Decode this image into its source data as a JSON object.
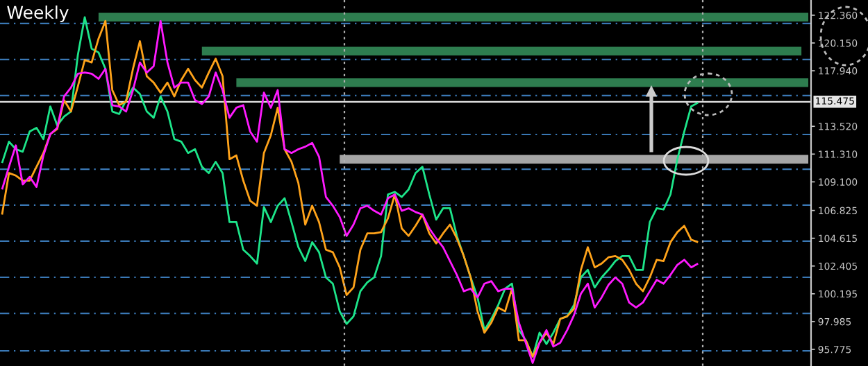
{
  "chart_data": {
    "type": "line",
    "title": "Weekly",
    "categories": [
      null,
      null,
      null,
      null,
      null,
      null,
      null,
      null,
      null,
      null,
      null,
      null,
      null,
      null,
      null,
      null,
      null,
      null,
      null,
      null,
      null,
      null,
      null,
      null,
      null,
      null,
      null,
      null,
      null,
      null,
      null,
      null,
      null,
      null,
      null,
      null,
      null,
      null,
      null,
      null,
      null,
      null,
      null,
      null,
      null,
      null,
      null,
      null,
      null,
      null,
      null,
      null,
      null,
      null,
      null,
      null,
      null,
      null,
      null,
      null,
      null,
      null,
      null,
      null,
      null,
      null,
      null,
      null,
      null,
      null,
      null,
      null,
      null,
      null,
      null,
      null,
      null,
      null,
      null,
      null,
      null,
      null,
      null,
      null,
      null,
      null,
      null,
      null,
      null,
      null,
      null,
      null,
      null,
      null,
      null,
      null,
      null,
      null,
      null,
      null,
      null,
      null,
      null,
      null,
      null,
      null,
      null,
      null,
      null,
      null,
      null,
      null,
      null,
      null,
      null,
      null,
      null,
      null
    ],
    "series": [
      {
        "color": "#1de58a",
        "values": [
          110.6,
          112.3,
          111.7,
          111.5,
          113.1,
          113.4,
          112.5,
          115.1,
          113.6,
          114.3,
          114.7,
          119.2,
          122.2,
          119.7,
          119.4,
          118.1,
          114.7,
          114.5,
          115.6,
          116.6,
          116.1,
          114.7,
          114.2,
          115.9,
          114.7,
          112.5,
          112.3,
          111.4,
          111.7,
          110.3,
          109.8,
          110.7,
          109.8,
          105.9,
          105.9,
          103.7,
          103.2,
          102.6,
          107.1,
          105.9,
          107.2,
          107.8,
          105.9,
          103.9,
          102.8,
          104.3,
          103.5,
          101.5,
          101.0,
          98.8,
          97.8,
          98.4,
          100.4,
          101.1,
          101.5,
          103.2,
          108.1,
          108.3,
          107.9,
          108.5,
          109.8,
          110.3,
          108.1,
          106.1,
          107.0,
          107.0,
          104.8,
          103.2,
          101.5,
          99.9,
          97.3,
          98.2,
          99.3,
          100.6,
          101.0,
          97.3,
          96.5,
          95.2,
          97.1,
          96.2,
          97.1,
          98.2,
          98.4,
          99.3,
          101.5,
          102.1,
          100.7,
          101.5,
          102.1,
          102.8,
          103.2,
          103.2,
          102.1,
          102.1,
          105.9,
          107.0,
          106.9,
          108.1,
          110.9,
          113.1,
          115.1,
          115.4,
          null,
          null,
          null,
          null,
          null,
          null,
          null,
          null,
          null,
          null,
          null,
          null,
          null,
          null,
          null,
          null
        ]
      },
      {
        "color": "#ffa31a",
        "values": [
          106.5,
          109.8,
          109.6,
          109.2,
          109.2,
          110.3,
          111.4,
          112.9,
          113.3,
          115.6,
          114.7,
          116.7,
          118.8,
          118.6,
          120.5,
          121.9,
          116.4,
          115.2,
          115.5,
          118.1,
          120.3,
          117.5,
          117.0,
          116.2,
          117.0,
          115.9,
          117.2,
          118.1,
          117.2,
          116.6,
          117.8,
          118.9,
          117.5,
          110.9,
          111.2,
          109.2,
          107.6,
          107.2,
          111.4,
          112.8,
          115.0,
          111.7,
          110.7,
          109.0,
          105.7,
          107.2,
          105.9,
          103.7,
          103.5,
          102.3,
          100.1,
          100.7,
          103.7,
          105.0,
          105.0,
          105.1,
          106.2,
          108.1,
          105.4,
          104.8,
          105.6,
          106.5,
          105.0,
          104.2,
          105.0,
          105.7,
          104.6,
          103.2,
          101.5,
          98.8,
          97.1,
          97.9,
          99.1,
          98.8,
          100.6,
          96.5,
          96.5,
          95.2,
          96.3,
          97.1,
          96.2,
          98.2,
          98.4,
          99.0,
          102.1,
          103.9,
          102.3,
          102.6,
          103.1,
          103.2,
          102.9,
          102.1,
          101.0,
          100.4,
          101.5,
          102.9,
          102.8,
          104.3,
          105.1,
          105.6,
          104.5,
          104.3,
          null,
          null,
          null,
          null,
          null,
          null,
          null,
          null,
          null,
          null,
          null,
          null,
          null,
          null,
          null,
          null
        ]
      },
      {
        "color": "#ff1aff",
        "values": [
          108.5,
          110.3,
          112.0,
          108.9,
          109.5,
          108.7,
          111.2,
          112.9,
          113.4,
          115.9,
          116.6,
          117.7,
          117.8,
          117.7,
          117.3,
          118.1,
          115.2,
          115.1,
          114.7,
          116.4,
          118.6,
          117.8,
          118.3,
          121.9,
          118.6,
          116.6,
          117.0,
          117.0,
          115.6,
          115.3,
          115.9,
          117.8,
          116.4,
          114.2,
          115.0,
          115.2,
          113.1,
          112.3,
          116.2,
          115.0,
          116.4,
          111.7,
          111.4,
          111.7,
          111.9,
          112.2,
          111.1,
          107.9,
          107.2,
          106.3,
          104.8,
          105.7,
          107.0,
          107.2,
          106.8,
          106.5,
          107.8,
          108.1,
          106.8,
          107.0,
          106.7,
          106.5,
          105.4,
          104.6,
          103.9,
          102.8,
          101.7,
          100.4,
          100.6,
          99.9,
          101.0,
          101.2,
          100.4,
          100.6,
          100.6,
          97.9,
          96.3,
          94.7,
          96.3,
          97.3,
          96.0,
          96.3,
          97.3,
          98.5,
          100.2,
          101.0,
          99.1,
          99.9,
          100.9,
          101.5,
          101.0,
          99.5,
          99.1,
          99.5,
          100.4,
          101.3,
          101.0,
          101.7,
          102.5,
          102.9,
          102.3,
          102.6,
          null,
          null,
          null,
          null,
          null,
          null,
          null,
          null,
          null,
          null,
          null,
          null,
          null,
          null,
          null,
          null
        ]
      },
      {
        "color": "#2e7d4f",
        "values": [
          null,
          null,
          null,
          null,
          null,
          null,
          null,
          null,
          null,
          null,
          null,
          null,
          null,
          null,
          122.2,
          122.2,
          122.2,
          122.2,
          122.2,
          122.2,
          122.2,
          122.2,
          122.2,
          122.2,
          122.2,
          122.2,
          122.2,
          122.2,
          122.2,
          122.2,
          122.2,
          122.2,
          122.2,
          122.2,
          122.2,
          122.2,
          122.2,
          122.2,
          122.2,
          122.2,
          122.2,
          122.2,
          122.2,
          122.2,
          122.2,
          122.2,
          122.2,
          122.2,
          122.2,
          122.2,
          122.2,
          122.2,
          122.2,
          122.2,
          122.2,
          122.2,
          122.2,
          122.2,
          122.2,
          122.2,
          122.2,
          122.2,
          122.2,
          122.2,
          122.2,
          122.2,
          122.2,
          122.2,
          122.2,
          122.2,
          122.2,
          122.2,
          122.2,
          122.2,
          122.2,
          122.2,
          122.2,
          122.2,
          122.2,
          122.2,
          122.2,
          122.2,
          122.2,
          122.2,
          122.2,
          122.2,
          122.2,
          122.2,
          122.2,
          122.2,
          122.2,
          122.2,
          122.2,
          122.2,
          122.2,
          122.2,
          122.2,
          122.2,
          122.2,
          122.2,
          122.2,
          122.2,
          122.2,
          122.2,
          122.2,
          122.2,
          122.2,
          122.2,
          122.2,
          122.2,
          122.2,
          122.2,
          122.2,
          122.2,
          122.2,
          122.2,
          122.2,
          122.2
        ]
      },
      {
        "color": "#2e7d4f",
        "values": [
          null,
          null,
          null,
          null,
          null,
          null,
          null,
          null,
          null,
          null,
          null,
          null,
          null,
          null,
          null,
          null,
          null,
          null,
          null,
          null,
          null,
          null,
          null,
          null,
          null,
          null,
          null,
          null,
          null,
          119.5,
          119.5,
          119.5,
          119.5,
          119.5,
          119.5,
          119.5,
          119.5,
          119.5,
          119.5,
          119.5,
          119.5,
          119.5,
          119.5,
          119.5,
          119.5,
          119.5,
          119.5,
          119.5,
          119.5,
          119.5,
          119.5,
          119.5,
          119.5,
          119.5,
          119.5,
          119.5,
          119.5,
          119.5,
          119.5,
          119.5,
          119.5,
          119.5,
          119.5,
          119.5,
          119.5,
          119.5,
          119.5,
          119.5,
          119.5,
          119.5,
          119.5,
          119.5,
          119.5,
          119.5,
          119.5,
          119.5,
          119.5,
          119.5,
          119.5,
          119.5,
          119.5,
          119.5,
          119.5,
          119.5,
          119.5,
          119.5,
          119.5,
          119.5,
          119.5,
          119.5,
          119.5,
          119.5,
          119.5,
          119.5,
          119.5,
          119.5,
          119.5,
          119.5,
          119.5,
          119.5,
          119.5,
          119.5,
          119.5,
          119.5,
          119.5,
          119.5,
          119.5,
          119.5,
          119.5,
          119.5,
          119.5,
          119.5,
          119.5,
          119.5,
          119.5,
          119.5,
          119.5,
          null
        ]
      },
      {
        "color": "#2e7d4f",
        "values": [
          null,
          null,
          null,
          null,
          null,
          null,
          null,
          null,
          null,
          null,
          null,
          null,
          null,
          null,
          null,
          null,
          null,
          null,
          null,
          null,
          null,
          null,
          null,
          null,
          null,
          null,
          null,
          null,
          null,
          null,
          null,
          null,
          null,
          null,
          117.0,
          117.0,
          117.0,
          117.0,
          117.0,
          117.0,
          117.0,
          117.0,
          117.0,
          117.0,
          117.0,
          117.0,
          117.0,
          117.0,
          117.0,
          117.0,
          117.0,
          117.0,
          117.0,
          117.0,
          117.0,
          117.0,
          117.0,
          117.0,
          117.0,
          117.0,
          117.0,
          117.0,
          117.0,
          117.0,
          117.0,
          117.0,
          117.0,
          117.0,
          117.0,
          117.0,
          117.0,
          117.0,
          117.0,
          117.0,
          117.0,
          117.0,
          117.0,
          117.0,
          117.0,
          117.0,
          117.0,
          117.0,
          117.0,
          117.0,
          117.0,
          117.0,
          117.0,
          117.0,
          117.0,
          117.0,
          117.0,
          117.0,
          117.0,
          117.0,
          117.0,
          117.0,
          117.0,
          117.0,
          117.0,
          117.0,
          117.0,
          117.0,
          117.0,
          117.0,
          117.0,
          117.0,
          117.0,
          117.0,
          117.0,
          117.0,
          117.0,
          117.0,
          117.0,
          117.0,
          117.0,
          117.0,
          117.0,
          117.0
        ]
      },
      {
        "color": "#a6a6a6",
        "values": [
          null,
          null,
          null,
          null,
          null,
          null,
          null,
          null,
          null,
          null,
          null,
          null,
          null,
          null,
          null,
          null,
          null,
          null,
          null,
          null,
          null,
          null,
          null,
          null,
          null,
          null,
          null,
          null,
          null,
          null,
          null,
          null,
          null,
          null,
          null,
          null,
          null,
          null,
          null,
          null,
          null,
          null,
          null,
          null,
          null,
          null,
          null,
          null,
          null,
          110.9,
          110.9,
          110.9,
          110.9,
          110.9,
          110.9,
          110.9,
          110.9,
          110.9,
          110.9,
          110.9,
          110.9,
          110.9,
          110.9,
          110.9,
          110.9,
          110.9,
          110.9,
          110.9,
          110.9,
          110.9,
          110.9,
          110.9,
          110.9,
          110.9,
          110.9,
          110.9,
          110.9,
          110.9,
          110.9,
          110.9,
          110.9,
          110.9,
          110.9,
          110.9,
          110.9,
          110.9,
          110.9,
          110.9,
          110.9,
          110.9,
          110.9,
          110.9,
          110.9,
          110.9,
          110.9,
          110.9,
          110.9,
          110.9,
          110.9,
          110.9,
          110.9,
          110.9,
          110.9,
          110.9,
          110.9,
          110.9,
          110.9,
          110.9,
          110.9,
          110.9,
          110.9,
          110.9,
          110.9,
          110.9,
          110.9,
          110.9,
          110.9,
          110.9
        ]
      }
    ],
    "ylim": [
      94.45,
      123.57
    ],
    "yticks": [
      {
        "value": 122.36,
        "label": "122.360"
      },
      {
        "value": 120.15,
        "label": "120.150"
      },
      {
        "value": 117.94,
        "label": "117.940"
      },
      {
        "value": 113.52,
        "label": "113.520"
      },
      {
        "value": 111.31,
        "label": "111.310"
      },
      {
        "value": 109.1,
        "label": "109.100"
      },
      {
        "value": 106.825,
        "label": "106.825"
      },
      {
        "value": 104.615,
        "label": "104.615"
      },
      {
        "value": 102.405,
        "label": "102.405"
      },
      {
        "value": 100.195,
        "label": "100.195"
      },
      {
        "value": 97.985,
        "label": "97.985"
      },
      {
        "value": 95.775,
        "label": "95.775"
      }
    ],
    "tick_labels": "y",
    "ref_lines": [
      {
        "axis": "y",
        "value": 121.7,
        "label": null,
        "color": "#3a78b5",
        "line_style": "dashed"
      },
      {
        "axis": "y",
        "value": 118.83,
        "label": null,
        "color": "#3a78b5",
        "line_style": "dashed"
      },
      {
        "axis": "y",
        "value": 115.96,
        "label": null,
        "color": "#3a78b5",
        "line_style": "dashed"
      },
      {
        "axis": "y",
        "value": 112.87,
        "label": null,
        "color": "#3a78b5",
        "line_style": "dashed"
      },
      {
        "axis": "y",
        "value": 110.11,
        "label": null,
        "color": "#3a78b5",
        "line_style": "dashed"
      },
      {
        "axis": "y",
        "value": 107.25,
        "label": null,
        "color": "#3a78b5",
        "line_style": "dashed"
      },
      {
        "axis": "y",
        "value": 104.38,
        "label": null,
        "color": "#3a78b5",
        "line_style": "dashed"
      },
      {
        "axis": "y",
        "value": 101.51,
        "label": null,
        "color": "#3a78b5",
        "line_style": "dashed"
      },
      {
        "axis": "y",
        "value": 98.64,
        "label": null,
        "color": "#3a78b5",
        "line_style": "dashed"
      },
      {
        "axis": "y",
        "value": 95.66,
        "label": null,
        "color": "#3a78b5",
        "line_style": "dashed"
      },
      {
        "axis": "y",
        "value": 115.475,
        "label": "115.475",
        "color": "#e6e6e6",
        "line_style": "solid"
      }
    ]
  }
}
